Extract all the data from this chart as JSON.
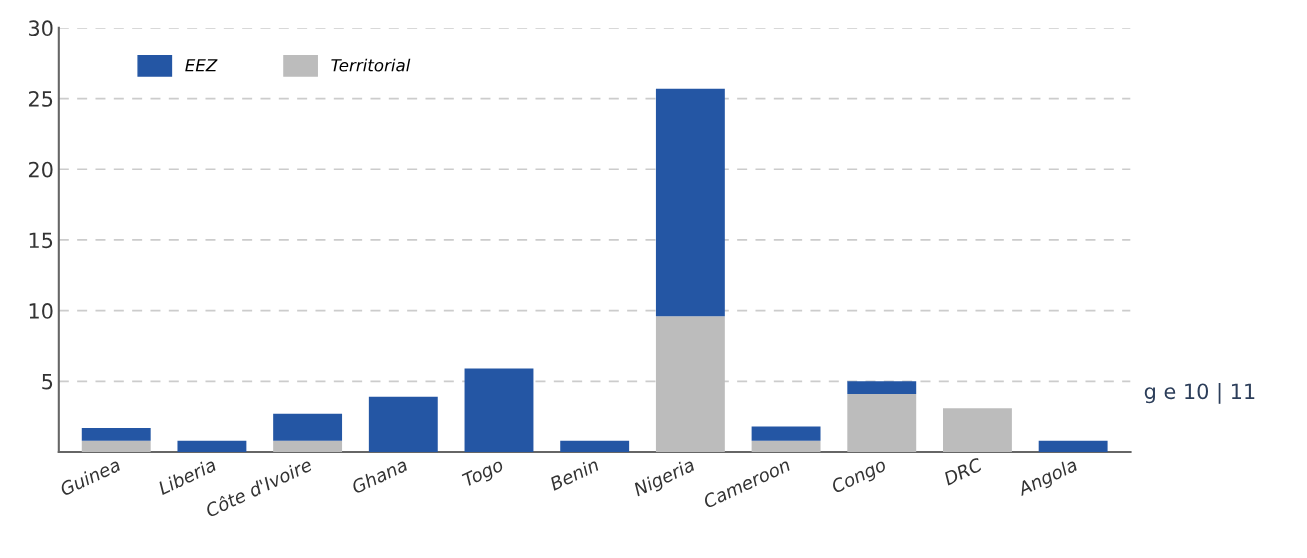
{
  "chart_data": {
    "type": "bar",
    "stacked": true,
    "categories": [
      "Guinea",
      "Liberia",
      "Côte d'Ivoire",
      "Ghana",
      "Togo",
      "Benin",
      "Nigeria",
      "Cameroon",
      "Congo",
      "DRC",
      "Angola"
    ],
    "series": [
      {
        "name": "Territorial",
        "color": "#bcbcbc",
        "values": [
          0.8,
          0,
          0.8,
          0,
          0,
          0,
          9.6,
          0.8,
          4.1,
          3.1,
          0
        ]
      },
      {
        "name": "EEZ",
        "color": "#2456a4",
        "values": [
          0.9,
          0.8,
          1.9,
          3.9,
          5.9,
          0.8,
          16.1,
          1.0,
          0.9,
          0,
          0.8
        ]
      }
    ],
    "ylim": [
      0,
      30
    ],
    "yticks": [
      5,
      10,
      15,
      20,
      25,
      30
    ],
    "grid": "y",
    "legend": "top left",
    "annotations": [
      "g e 10 | 11"
    ]
  }
}
